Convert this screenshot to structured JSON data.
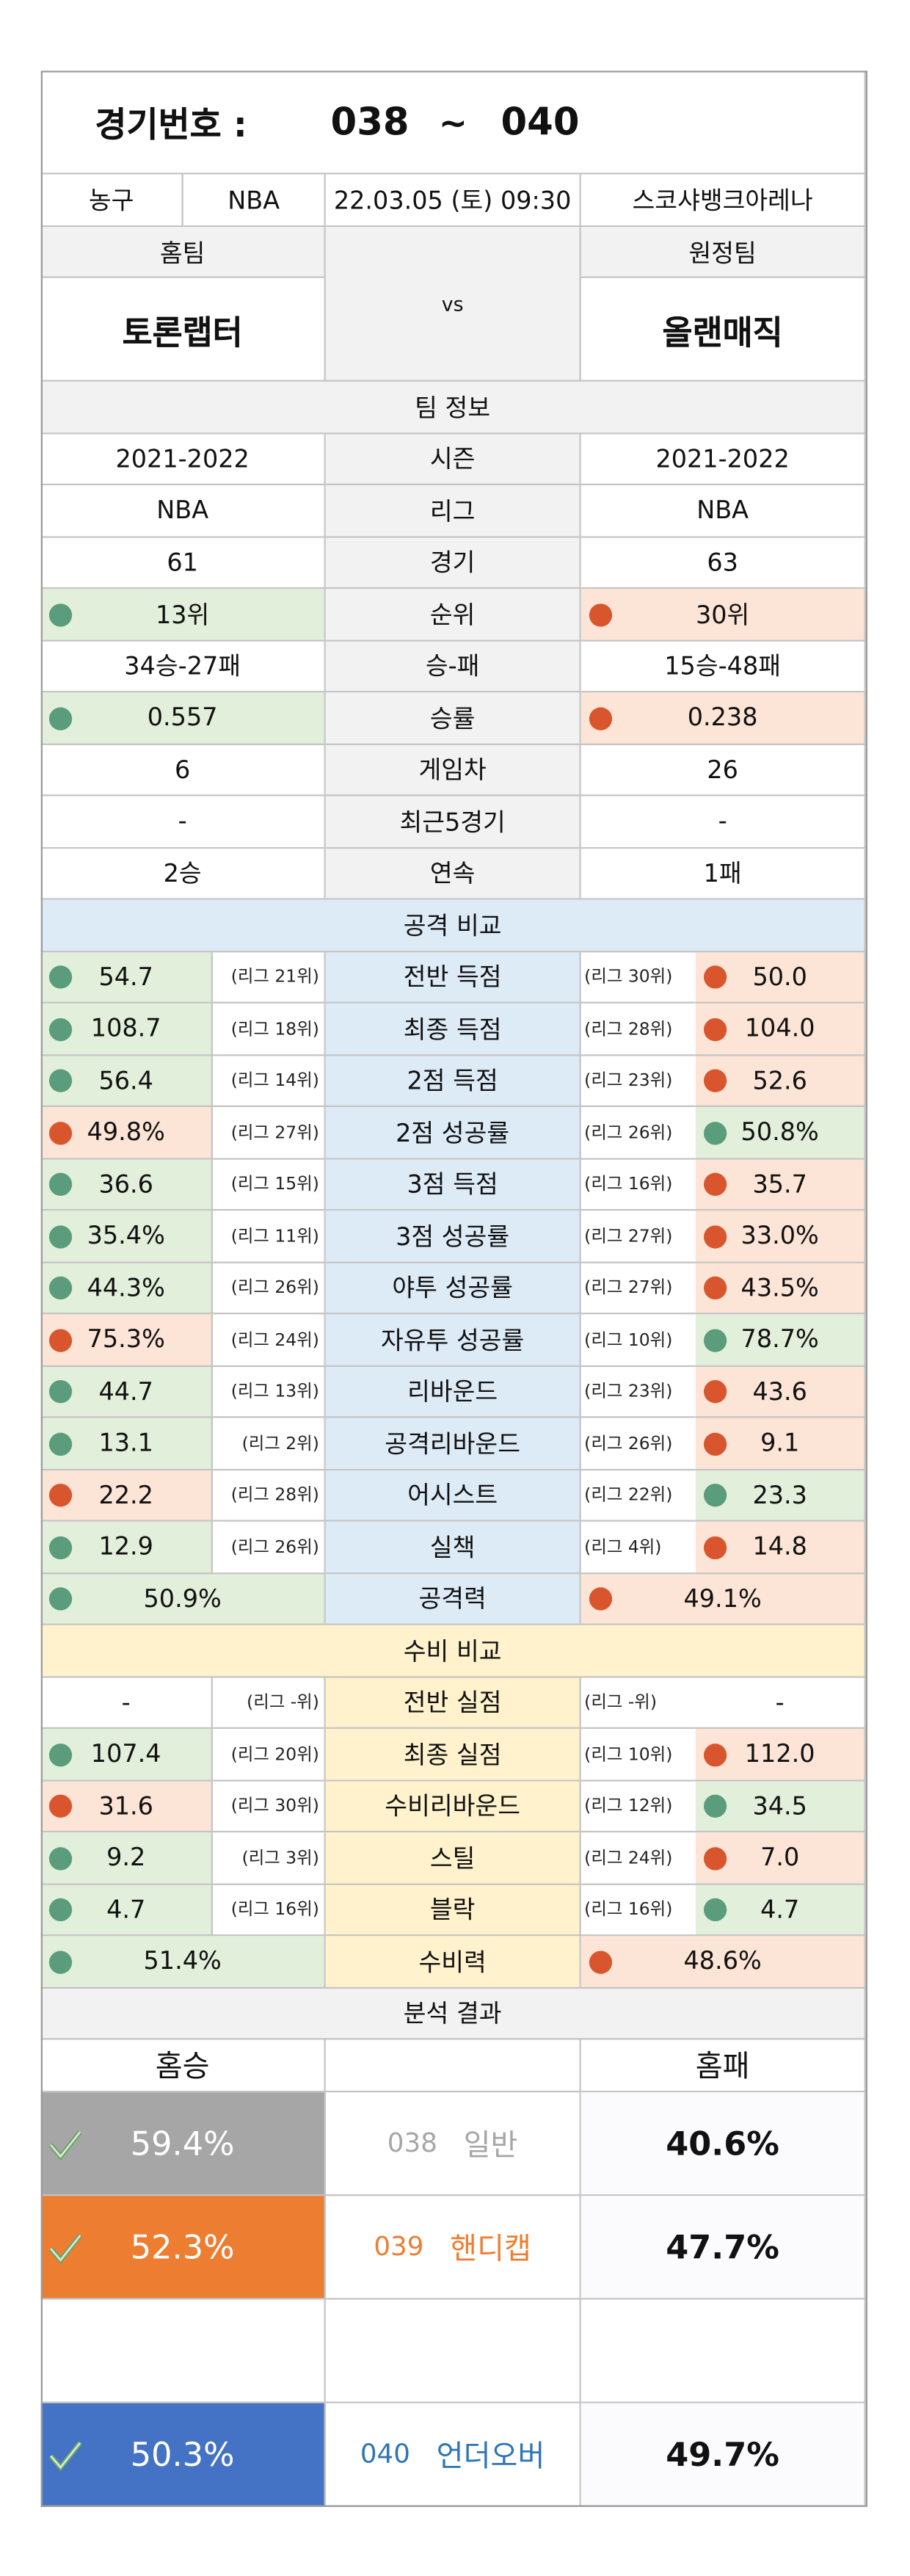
{
  "header": {
    "label": "경기번호 :",
    "start": "038",
    "separator": "~",
    "end": "040"
  },
  "info": [
    "농구",
    "NBA",
    "22.03.05 (토) 09:30",
    "스코샤뱅크아레나"
  ],
  "teams": {
    "home_label": "홈팀",
    "away_label": "원정팀",
    "vs": "vs",
    "home": "토론랩터",
    "away": "올랜매직"
  },
  "status_colors": {
    "good": {
      "bg": "#e2efda",
      "dot": "#5a9c7c"
    },
    "bad": {
      "bg": "#fce4d6",
      "dot": "#d9552d"
    }
  },
  "team_info": {
    "title": "팀 정보",
    "rows": [
      {
        "label": "시즌",
        "home": "2021-2022",
        "away": "2021-2022"
      },
      {
        "label": "리그",
        "home": "NBA",
        "away": "NBA"
      },
      {
        "label": "경기",
        "home": "61",
        "away": "63"
      },
      {
        "label": "순위",
        "home": "13위",
        "away": "30위",
        "home_status": "good",
        "away_status": "bad"
      },
      {
        "label": "승-패",
        "home": "34승-27패",
        "away": "15승-48패"
      },
      {
        "label": "승률",
        "home": "0.557",
        "away": "0.238",
        "home_status": "good",
        "away_status": "bad"
      },
      {
        "label": "게임차",
        "home": "6",
        "away": "26"
      },
      {
        "label": "최근5경기",
        "home": "-",
        "away": "-"
      },
      {
        "label": "연속",
        "home": "2승",
        "away": "1패"
      }
    ]
  },
  "attack": {
    "title": "공격 비교",
    "bg": "#ddebf7",
    "rows": [
      {
        "label": "전반 득점",
        "home": "54.7",
        "home_rank": "(리그 21위)",
        "away_rank": "(리그 30위)",
        "away": "50.0",
        "home_status": "good",
        "away_status": "bad"
      },
      {
        "label": "최종 득점",
        "home": "108.7",
        "home_rank": "(리그 18위)",
        "away_rank": "(리그 28위)",
        "away": "104.0",
        "home_status": "good",
        "away_status": "bad"
      },
      {
        "label": "2점 득점",
        "home": "56.4",
        "home_rank": "(리그 14위)",
        "away_rank": "(리그 23위)",
        "away": "52.6",
        "home_status": "good",
        "away_status": "bad"
      },
      {
        "label": "2점 성공률",
        "home": "49.8%",
        "home_rank": "(리그 27위)",
        "away_rank": "(리그 26위)",
        "away": "50.8%",
        "home_status": "bad",
        "away_status": "good"
      },
      {
        "label": "3점 득점",
        "home": "36.6",
        "home_rank": "(리그 15위)",
        "away_rank": "(리그 16위)",
        "away": "35.7",
        "home_status": "good",
        "away_status": "bad"
      },
      {
        "label": "3점 성공률",
        "home": "35.4%",
        "home_rank": "(리그 11위)",
        "away_rank": "(리그 27위)",
        "away": "33.0%",
        "home_status": "good",
        "away_status": "bad"
      },
      {
        "label": "야투 성공률",
        "home": "44.3%",
        "home_rank": "(리그 26위)",
        "away_rank": "(리그 27위)",
        "away": "43.5%",
        "home_status": "good",
        "away_status": "bad"
      },
      {
        "label": "자유투 성공률",
        "home": "75.3%",
        "home_rank": "(리그 24위)",
        "away_rank": "(리그 10위)",
        "away": "78.7%",
        "home_status": "bad",
        "away_status": "good"
      },
      {
        "label": "리바운드",
        "home": "44.7",
        "home_rank": "(리그 13위)",
        "away_rank": "(리그 23위)",
        "away": "43.6",
        "home_status": "good",
        "away_status": "bad"
      },
      {
        "label": "공격리바운드",
        "home": "13.1",
        "home_rank": "(리그 2위)",
        "away_rank": "(리그 26위)",
        "away": "9.1",
        "home_status": "good",
        "away_status": "bad"
      },
      {
        "label": "어시스트",
        "home": "22.2",
        "home_rank": "(리그 28위)",
        "away_rank": "(리그 22위)",
        "away": "23.3",
        "home_status": "bad",
        "away_status": "good"
      },
      {
        "label": "실책",
        "home": "12.9",
        "home_rank": "(리그 26위)",
        "away_rank": "(리그 4위)",
        "away": "14.8",
        "home_status": "good",
        "away_status": "bad"
      }
    ],
    "total": {
      "label": "공격력",
      "home": "50.9%",
      "away": "49.1%",
      "home_status": "good",
      "away_status": "bad"
    }
  },
  "defense": {
    "title": "수비 비교",
    "bg": "#fff2cc",
    "rows": [
      {
        "label": "전반 실점",
        "home": "-",
        "home_rank": "(리그 -위)",
        "away_rank": "(리그 -위)",
        "away": "-"
      },
      {
        "label": "최종 실점",
        "home": "107.4",
        "home_rank": "(리그 20위)",
        "away_rank": "(리그 10위)",
        "away": "112.0",
        "home_status": "good",
        "away_status": "bad"
      },
      {
        "label": "수비리바운드",
        "home": "31.6",
        "home_rank": "(리그 30위)",
        "away_rank": "(리그 12위)",
        "away": "34.5",
        "home_status": "bad",
        "away_status": "good"
      },
      {
        "label": "스틸",
        "home": "9.2",
        "home_rank": "(리그 3위)",
        "away_rank": "(리그 24위)",
        "away": "7.0",
        "home_status": "good",
        "away_status": "bad"
      },
      {
        "label": "블락",
        "home": "4.7",
        "home_rank": "(리그 16위)",
        "away_rank": "(리그 16위)",
        "away": "4.7",
        "home_status": "good",
        "away_status": "good"
      }
    ],
    "total": {
      "label": "수비력",
      "home": "51.4%",
      "away": "48.6%",
      "home_status": "good",
      "away_status": "bad"
    }
  },
  "analysis": {
    "title": "분석 결과",
    "home_label": "홈승",
    "away_label": "홈패",
    "rows": [
      {
        "home": "59.4%",
        "code": "038",
        "name": "일반",
        "away": "40.6%",
        "color": "#a6a6a6",
        "text_color": "#a6a6a6"
      },
      {
        "home": "52.3%",
        "code": "039",
        "name": "핸디캡",
        "away": "47.7%",
        "color": "#ed7d31",
        "text_color": "#ed7d31"
      },
      {
        "home": "50.3%",
        "code": "040",
        "name": "언더오버",
        "away": "49.7%",
        "color": "#4472c4",
        "text_color": "#2e75b6"
      }
    ]
  }
}
